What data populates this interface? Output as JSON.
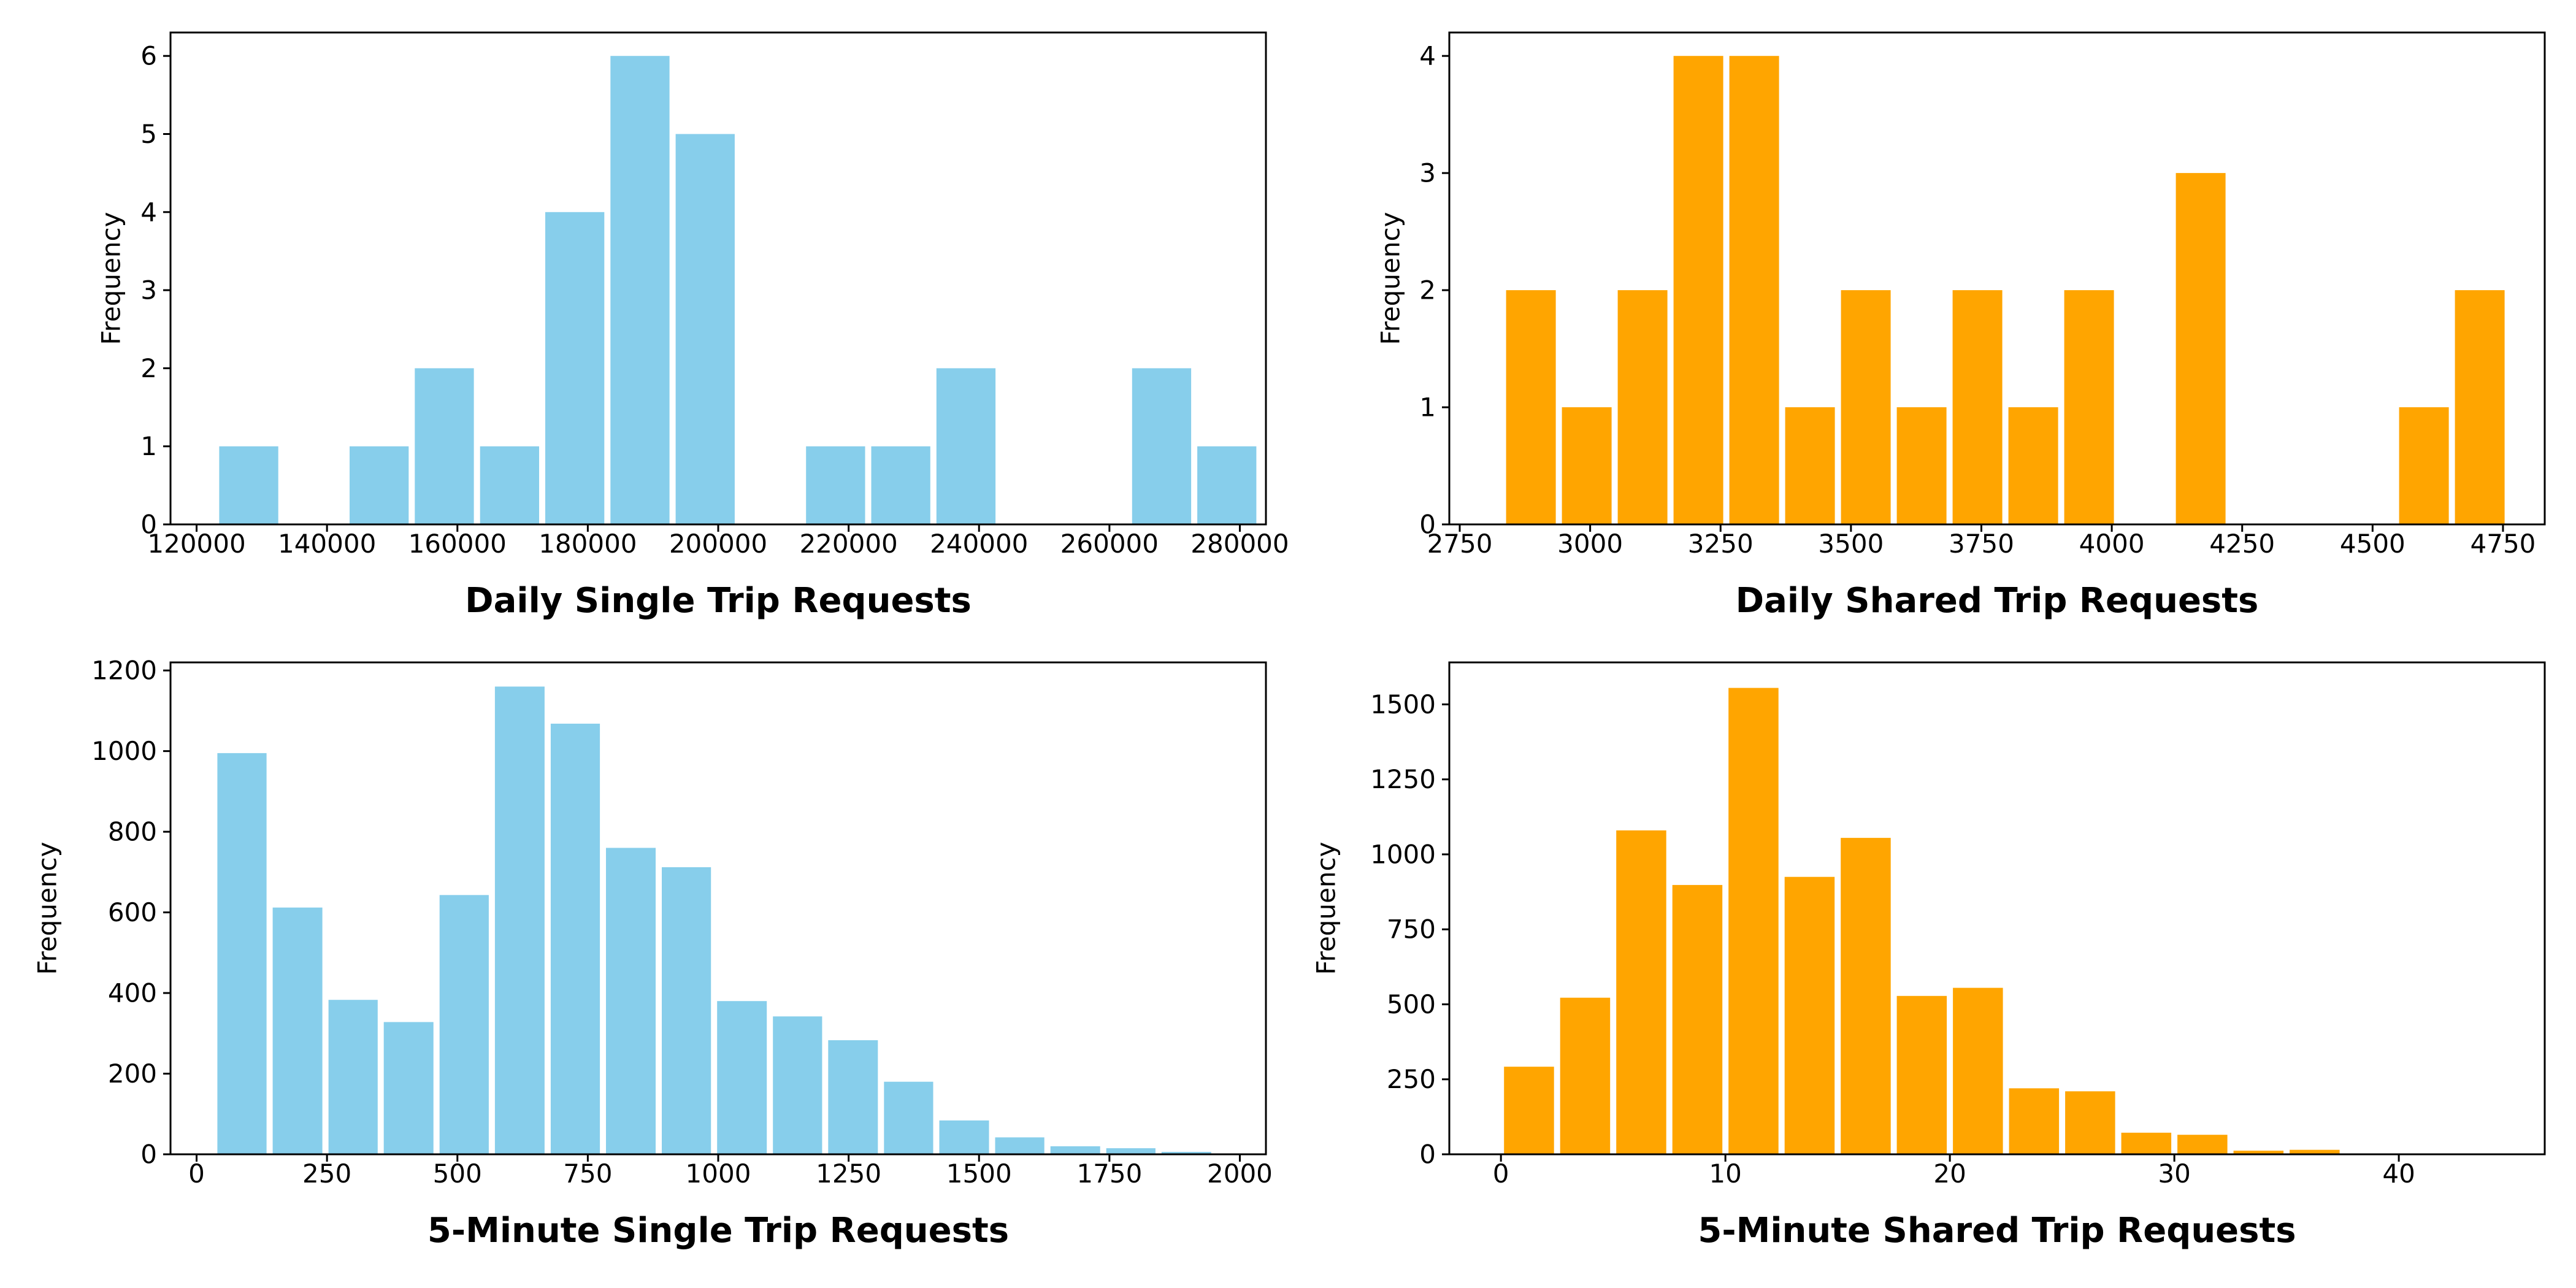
{
  "chart_data": [
    {
      "type": "bar",
      "title": "",
      "xlabel": "Daily Single Trip Requests",
      "ylabel": "Frequency",
      "color": "#87CEEB",
      "xlim": [
        116000,
        284000
      ],
      "ylim": [
        0,
        6.3
      ],
      "xticks": [
        120000,
        140000,
        160000,
        180000,
        200000,
        220000,
        240000,
        260000,
        280000
      ],
      "yticks": [
        0,
        1,
        2,
        3,
        4,
        5,
        6
      ],
      "bin_width": 10000,
      "bins": [
        {
          "x0": 123000,
          "x1": 133000,
          "value": 1
        },
        {
          "x0": 143000,
          "x1": 153000,
          "value": 1
        },
        {
          "x0": 153000,
          "x1": 163000,
          "value": 2
        },
        {
          "x0": 163000,
          "x1": 173000,
          "value": 1
        },
        {
          "x0": 173000,
          "x1": 183000,
          "value": 4
        },
        {
          "x0": 183000,
          "x1": 193000,
          "value": 6
        },
        {
          "x0": 193000,
          "x1": 203000,
          "value": 5
        },
        {
          "x0": 203000,
          "x1": 213000,
          "value": 0
        },
        {
          "x0": 213000,
          "x1": 223000,
          "value": 1
        },
        {
          "x0": 223000,
          "x1": 233000,
          "value": 1
        },
        {
          "x0": 233000,
          "x1": 243000,
          "value": 2
        },
        {
          "x0": 243000,
          "x1": 253000,
          "value": 0
        },
        {
          "x0": 253000,
          "x1": 263000,
          "value": 0
        },
        {
          "x0": 263000,
          "x1": 273000,
          "value": 2
        },
        {
          "x0": 273000,
          "x1": 283000,
          "value": 1
        }
      ]
    },
    {
      "type": "bar",
      "title": "",
      "xlabel": "Daily Shared Trip Requests",
      "ylabel": "Frequency",
      "color": "#FFA500",
      "xlim": [
        2730,
        4830
      ],
      "ylim": [
        0,
        4.2
      ],
      "xticks": [
        2750,
        3000,
        3250,
        3500,
        3750,
        4000,
        4250,
        4500,
        4750
      ],
      "yticks": [
        0,
        1,
        2,
        3,
        4
      ],
      "bin_width": 107,
      "bins": [
        {
          "x0": 2833,
          "x1": 2940,
          "value": 2
        },
        {
          "x0": 2940,
          "x1": 3047,
          "value": 1
        },
        {
          "x0": 3047,
          "x1": 3154,
          "value": 2
        },
        {
          "x0": 3154,
          "x1": 3261,
          "value": 4
        },
        {
          "x0": 3261,
          "x1": 3368,
          "value": 4
        },
        {
          "x0": 3368,
          "x1": 3475,
          "value": 1
        },
        {
          "x0": 3475,
          "x1": 3582,
          "value": 2
        },
        {
          "x0": 3582,
          "x1": 3689,
          "value": 1
        },
        {
          "x0": 3689,
          "x1": 3796,
          "value": 2
        },
        {
          "x0": 3796,
          "x1": 3903,
          "value": 1
        },
        {
          "x0": 3903,
          "x1": 4010,
          "value": 2
        },
        {
          "x0": 4010,
          "x1": 4117,
          "value": 0
        },
        {
          "x0": 4117,
          "x1": 4224,
          "value": 3
        },
        {
          "x0": 4224,
          "x1": 4331,
          "value": 0
        },
        {
          "x0": 4331,
          "x1": 4438,
          "value": 0
        },
        {
          "x0": 4438,
          "x1": 4545,
          "value": 0
        },
        {
          "x0": 4545,
          "x1": 4652,
          "value": 1
        },
        {
          "x0": 4652,
          "x1": 4759,
          "value": 2
        }
      ]
    },
    {
      "type": "bar",
      "title": "",
      "xlabel": "5-Minute Single Trip Requests",
      "ylabel": "Frequency",
      "color": "#87CEEB",
      "xlim": [
        -50,
        2050
      ],
      "ylim": [
        0,
        1220
      ],
      "xticks": [
        0,
        250,
        500,
        750,
        1000,
        1250,
        1500,
        1750,
        2000
      ],
      "yticks": [
        0,
        200,
        400,
        600,
        800,
        1000,
        1200
      ],
      "bin_width": 106.5,
      "bins": [
        {
          "x0": 34,
          "x1": 140,
          "value": 995
        },
        {
          "x0": 140,
          "x1": 247,
          "value": 612
        },
        {
          "x0": 247,
          "x1": 353,
          "value": 383
        },
        {
          "x0": 353,
          "x1": 460,
          "value": 328
        },
        {
          "x0": 460,
          "x1": 566,
          "value": 643
        },
        {
          "x0": 566,
          "x1": 673,
          "value": 1160
        },
        {
          "x0": 673,
          "x1": 779,
          "value": 1068
        },
        {
          "x0": 779,
          "x1": 886,
          "value": 760
        },
        {
          "x0": 886,
          "x1": 992,
          "value": 712
        },
        {
          "x0": 992,
          "x1": 1099,
          "value": 380
        },
        {
          "x0": 1099,
          "x1": 1205,
          "value": 342
        },
        {
          "x0": 1205,
          "x1": 1312,
          "value": 283
        },
        {
          "x0": 1312,
          "x1": 1418,
          "value": 180
        },
        {
          "x0": 1418,
          "x1": 1525,
          "value": 84
        },
        {
          "x0": 1525,
          "x1": 1631,
          "value": 42
        },
        {
          "x0": 1631,
          "x1": 1738,
          "value": 20
        },
        {
          "x0": 1738,
          "x1": 1844,
          "value": 15
        },
        {
          "x0": 1844,
          "x1": 1951,
          "value": 6
        }
      ]
    },
    {
      "type": "bar",
      "title": "",
      "xlabel": "5-Minute Shared Trip Requests",
      "ylabel": "Frequency",
      "color": "#FFA500",
      "xlim": [
        -2.3,
        46.5
      ],
      "ylim": [
        0,
        1640
      ],
      "xticks": [
        0,
        10,
        20,
        30,
        40
      ],
      "yticks": [
        0,
        250,
        500,
        750,
        1000,
        1250,
        1500
      ],
      "bin_width": 2.5,
      "bins": [
        {
          "x0": 0,
          "x1": 2.5,
          "value": 292
        },
        {
          "x0": 2.5,
          "x1": 5,
          "value": 522
        },
        {
          "x0": 5,
          "x1": 7.5,
          "value": 1080
        },
        {
          "x0": 7.5,
          "x1": 10,
          "value": 898
        },
        {
          "x0": 10,
          "x1": 12.5,
          "value": 1555
        },
        {
          "x0": 12.5,
          "x1": 15,
          "value": 925
        },
        {
          "x0": 15,
          "x1": 17.5,
          "value": 1055
        },
        {
          "x0": 17.5,
          "x1": 20,
          "value": 528
        },
        {
          "x0": 20,
          "x1": 22.5,
          "value": 555
        },
        {
          "x0": 22.5,
          "x1": 25,
          "value": 220
        },
        {
          "x0": 25,
          "x1": 27.5,
          "value": 210
        },
        {
          "x0": 27.5,
          "x1": 30,
          "value": 72
        },
        {
          "x0": 30,
          "x1": 32.5,
          "value": 65
        },
        {
          "x0": 32.5,
          "x1": 35,
          "value": 12
        },
        {
          "x0": 35,
          "x1": 37.5,
          "value": 15
        },
        {
          "x0": 37.5,
          "x1": 40,
          "value": 3
        },
        {
          "x0": 40,
          "x1": 42.5,
          "value": 1
        }
      ]
    }
  ]
}
